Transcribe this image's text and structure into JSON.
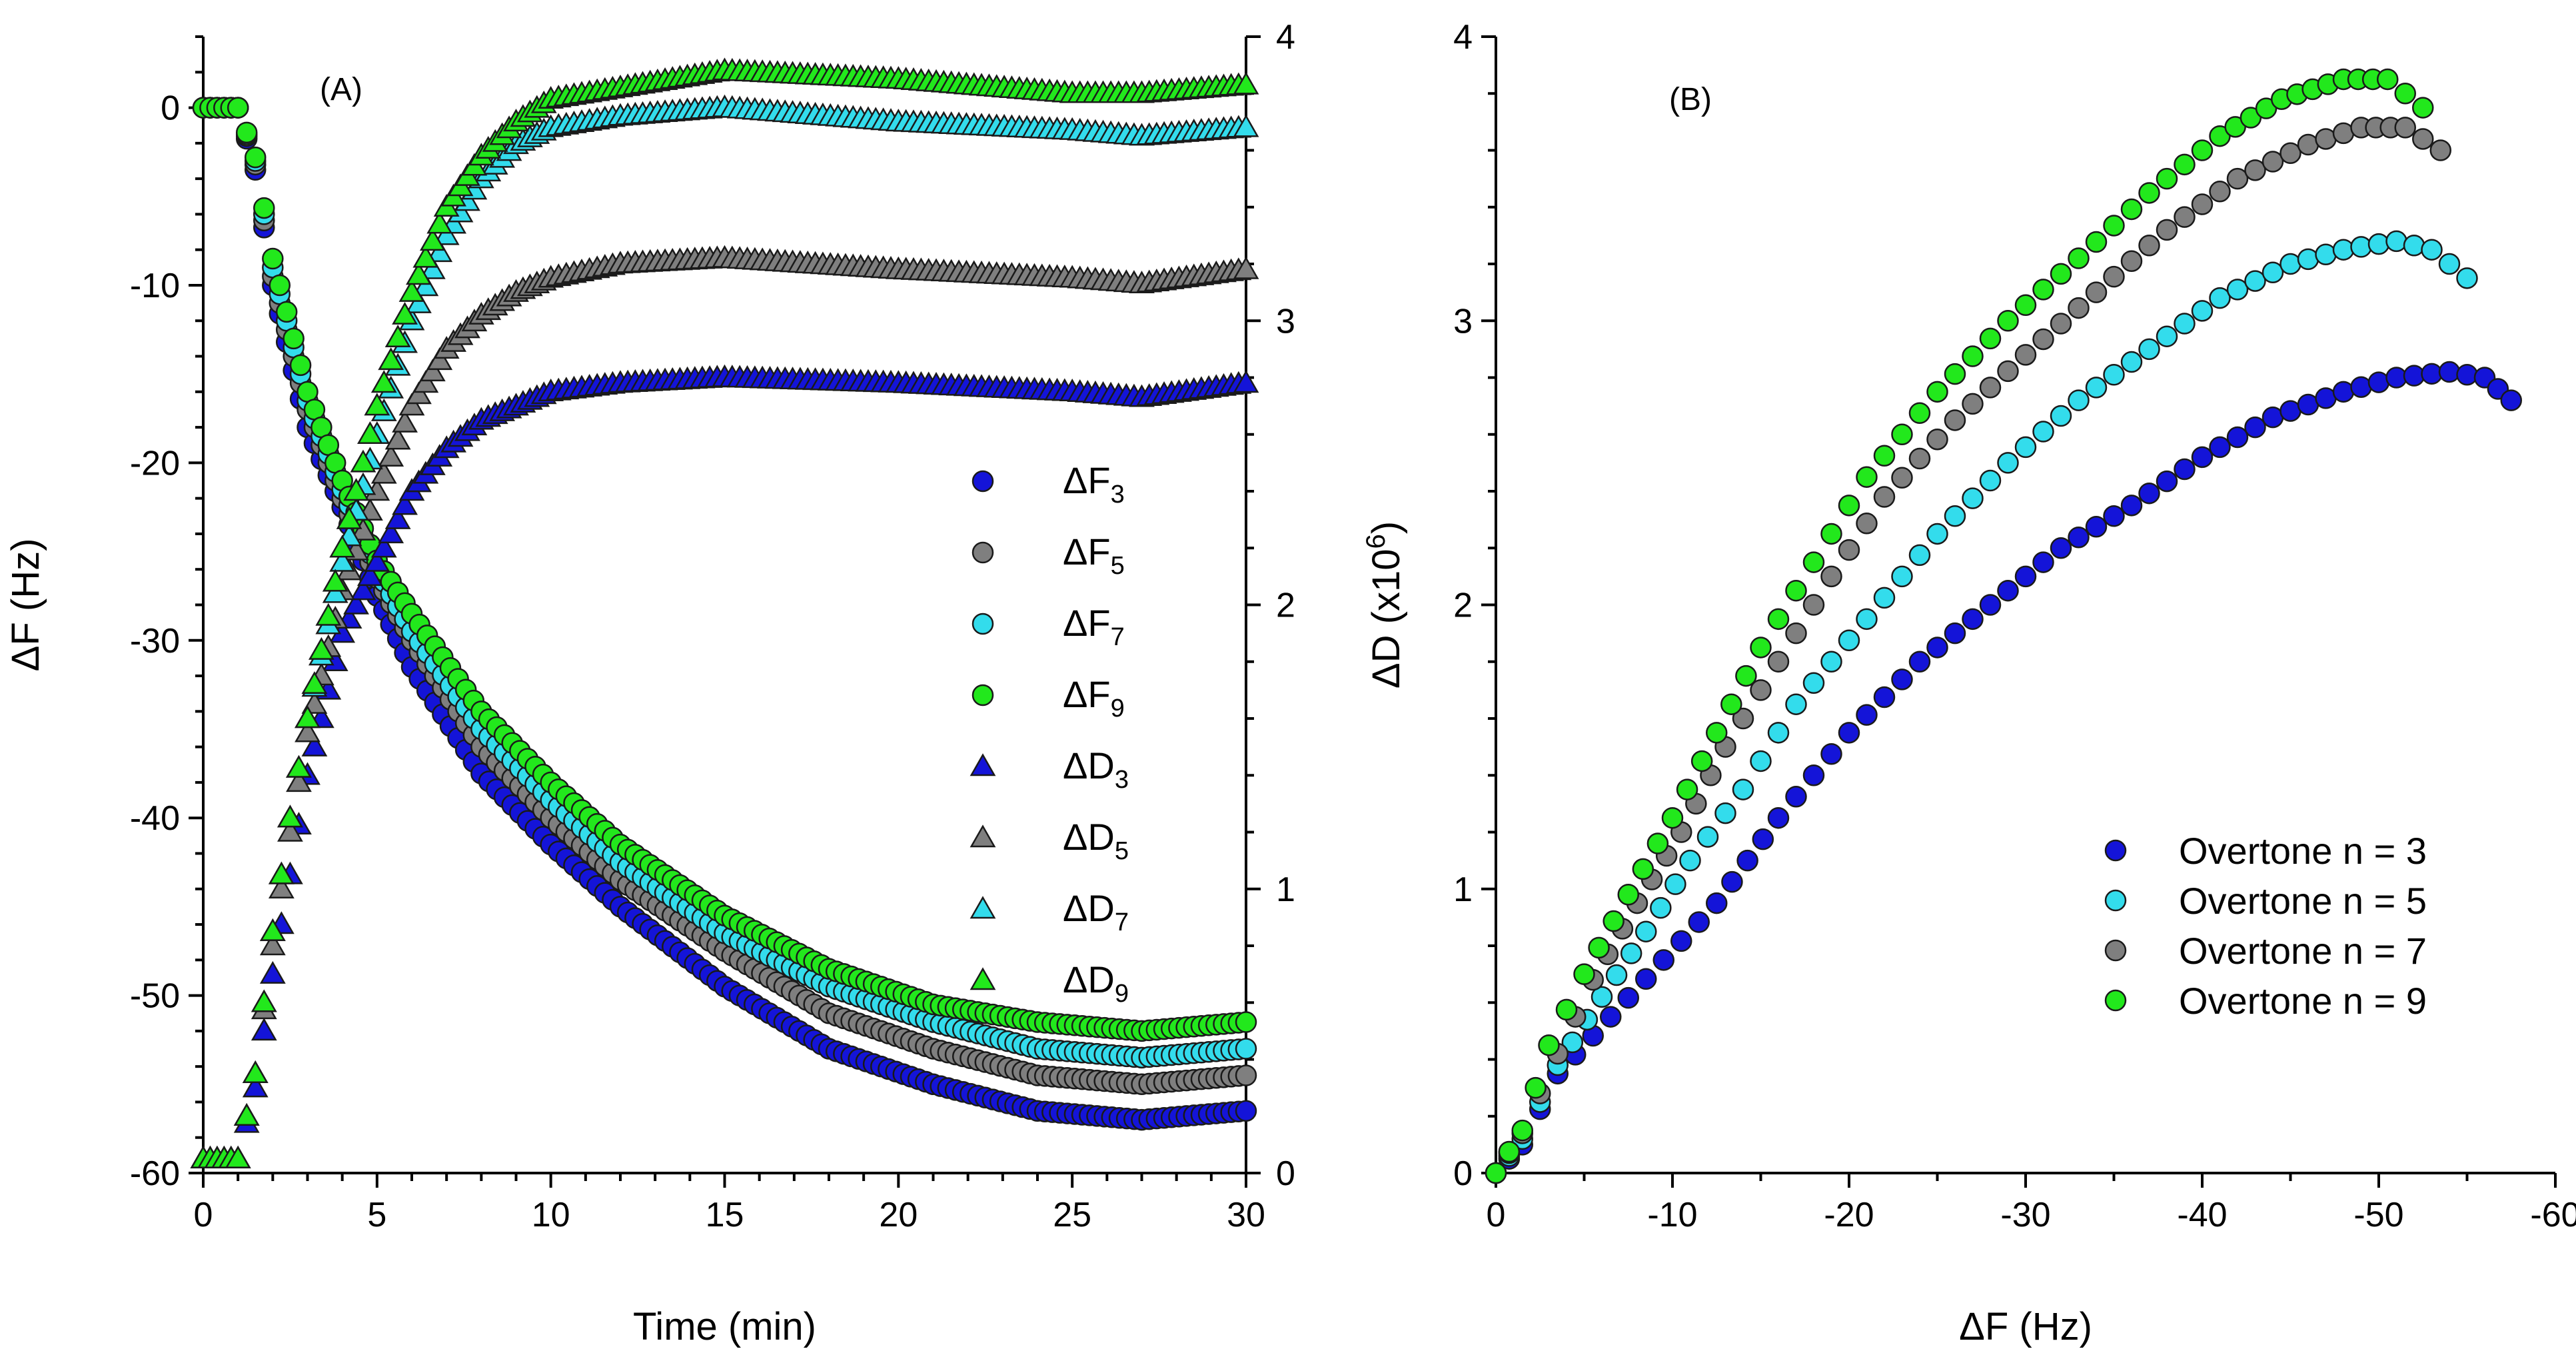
{
  "colors": {
    "n3": "#1414d8",
    "n5": "#7f7f7f",
    "n7": "#33dcec",
    "n9": "#22e81c",
    "axis": "#000000"
  },
  "chart_data": [
    {
      "type": "scatter",
      "panel_label": "(A)",
      "xlabel": "Time (min)",
      "ylabel": "ΔF (Hz)",
      "y2label": "",
      "xlim": [
        0,
        30
      ],
      "ylim": [
        -60,
        4
      ],
      "y2lim": [
        0,
        4
      ],
      "x_ticks": [
        "0",
        "5",
        "10",
        "15",
        "20",
        "25",
        "30"
      ],
      "y_ticks": [
        "0",
        "-10",
        "-20",
        "-30",
        "-40",
        "-50",
        "-60"
      ],
      "y2_ticks": [
        "0",
        "1",
        "2",
        "3",
        "4"
      ],
      "legend_position": "center-right",
      "series": [
        {
          "name": "ΔF3",
          "base": "ΔF",
          "sub": "3",
          "axis": "left",
          "marker": "circle",
          "color_key": "n3",
          "x": [
            0,
            1,
            1.5,
            2,
            3,
            4,
            5,
            6,
            8,
            10,
            12,
            15,
            18,
            21,
            24,
            27,
            30
          ],
          "y": [
            0,
            0,
            -3.5,
            -10,
            -18,
            -22.5,
            -27.5,
            -31.5,
            -37.5,
            -41.5,
            -45,
            -49.5,
            -53,
            -55,
            -56.5,
            -57,
            -56.5
          ]
        },
        {
          "name": "ΔF5",
          "base": "ΔF",
          "sub": "5",
          "axis": "left",
          "marker": "circle",
          "color_key": "n5",
          "x": [
            0,
            1,
            1.5,
            2,
            3,
            4,
            5,
            6,
            8,
            10,
            12,
            15,
            18,
            21,
            24,
            27,
            30
          ],
          "y": [
            0,
            0,
            -3.2,
            -9.5,
            -17,
            -22,
            -26.5,
            -30,
            -36,
            -40,
            -43.5,
            -47.5,
            -51,
            -53,
            -54.5,
            -55,
            -54.5
          ]
        },
        {
          "name": "ΔF7",
          "base": "ΔF",
          "sub": "7",
          "axis": "left",
          "marker": "circle",
          "color_key": "n7",
          "x": [
            0,
            1,
            1.5,
            2,
            3,
            4,
            5,
            6,
            8,
            10,
            12,
            15,
            18,
            21,
            24,
            27,
            30
          ],
          "y": [
            0,
            0,
            -3,
            -9,
            -16.5,
            -21.5,
            -26,
            -29.5,
            -35,
            -39,
            -42.5,
            -46.5,
            -49.5,
            -51.5,
            -53,
            -53.5,
            -53
          ]
        },
        {
          "name": "ΔF9",
          "base": "ΔF",
          "sub": "9",
          "axis": "left",
          "marker": "circle",
          "color_key": "n9",
          "x": [
            0,
            1,
            1.5,
            2,
            3,
            4,
            5,
            6,
            8,
            10,
            12,
            15,
            18,
            21,
            24,
            27,
            30
          ],
          "y": [
            0,
            0,
            -2.8,
            -8.5,
            -16,
            -21,
            -25.5,
            -28.5,
            -34,
            -38,
            -41.5,
            -45.5,
            -48.5,
            -50.5,
            -51.5,
            -52,
            -51.5
          ]
        },
        {
          "name": "ΔD3",
          "base": "ΔD",
          "sub": "3",
          "axis": "right",
          "marker": "triangle",
          "color_key": "n3",
          "x": [
            0,
            1,
            1.5,
            2,
            2.5,
            3,
            4,
            5,
            6,
            7,
            8,
            9,
            10,
            12,
            15,
            20,
            25,
            27,
            30
          ],
          "y": [
            0.05,
            0.05,
            0.3,
            0.7,
            1.05,
            1.4,
            1.9,
            2.15,
            2.4,
            2.55,
            2.65,
            2.7,
            2.75,
            2.78,
            2.8,
            2.78,
            2.75,
            2.73,
            2.78
          ]
        },
        {
          "name": "ΔD5",
          "base": "ΔD",
          "sub": "5",
          "axis": "right",
          "marker": "triangle",
          "color_key": "n5",
          "x": [
            0,
            1,
            1.5,
            2,
            2.5,
            3,
            4,
            5,
            6,
            7,
            8,
            9,
            10,
            12,
            15,
            20,
            25,
            27,
            30
          ],
          "y": [
            0.05,
            0.05,
            0.35,
            0.8,
            1.2,
            1.55,
            2.05,
            2.4,
            2.7,
            2.9,
            3.02,
            3.1,
            3.15,
            3.2,
            3.22,
            3.18,
            3.15,
            3.13,
            3.18
          ]
        },
        {
          "name": "ΔD7",
          "base": "ΔD",
          "sub": "7",
          "axis": "right",
          "marker": "triangle",
          "color_key": "n7",
          "x": [
            0,
            1,
            1.5,
            2,
            2.5,
            3,
            4,
            5,
            6,
            7,
            8,
            9,
            10,
            12,
            15,
            20,
            25,
            27,
            30
          ],
          "y": [
            0.05,
            0.05,
            0.35,
            0.85,
            1.25,
            1.6,
            2.15,
            2.6,
            3.0,
            3.3,
            3.5,
            3.62,
            3.68,
            3.72,
            3.75,
            3.7,
            3.67,
            3.65,
            3.68
          ]
        },
        {
          "name": "ΔD9",
          "base": "ΔD",
          "sub": "9",
          "axis": "right",
          "marker": "triangle",
          "color_key": "n9",
          "x": [
            0,
            1,
            1.5,
            2,
            2.5,
            3,
            4,
            5,
            6,
            7,
            8,
            9,
            10,
            12,
            15,
            20,
            25,
            27,
            30
          ],
          "y": [
            0.05,
            0.05,
            0.35,
            0.85,
            1.25,
            1.6,
            2.2,
            2.7,
            3.1,
            3.4,
            3.58,
            3.7,
            3.78,
            3.82,
            3.88,
            3.85,
            3.8,
            3.8,
            3.83
          ]
        }
      ]
    },
    {
      "type": "scatter",
      "panel_label": "(B)",
      "xlabel": "ΔF (Hz)",
      "ylabel": "ΔD (x10",
      "ylabel_sup": "6",
      "ylabel_tail": ")",
      "xlim": [
        0,
        -60
      ],
      "ylim": [
        0,
        4
      ],
      "x_ticks": [
        "0",
        "-10",
        "-20",
        "-30",
        "-40",
        "-50",
        "-60"
      ],
      "y_ticks": [
        "0",
        "1",
        "2",
        "3",
        "4"
      ],
      "legend_position": "bottom-right",
      "series": [
        {
          "name": "Overtone n = 3",
          "marker": "circle",
          "color_key": "n3",
          "x": [
            0,
            -1.5,
            -3.5,
            -6.5,
            -9.5,
            -12.5,
            -16,
            -20,
            -24,
            -28,
            -32,
            -36,
            -40,
            -44,
            -48,
            -51,
            -54,
            -56,
            -57.5
          ],
          "y": [
            0,
            0.1,
            0.35,
            0.55,
            0.75,
            0.95,
            1.25,
            1.55,
            1.8,
            2.0,
            2.2,
            2.35,
            2.52,
            2.66,
            2.75,
            2.8,
            2.82,
            2.8,
            2.72
          ]
        },
        {
          "name": "Overtone n = 5",
          "marker": "circle",
          "color_key": "n7",
          "x": [
            0,
            -1.5,
            -3.5,
            -6,
            -8.5,
            -11,
            -14,
            -17,
            -21,
            -25,
            -29,
            -33,
            -37,
            -41,
            -45,
            -48,
            -51,
            -53,
            -55
          ],
          "y": [
            0,
            0.12,
            0.38,
            0.62,
            0.85,
            1.1,
            1.35,
            1.65,
            1.95,
            2.25,
            2.5,
            2.72,
            2.9,
            3.08,
            3.2,
            3.25,
            3.28,
            3.25,
            3.15
          ]
        },
        {
          "name": "Overtone n = 7",
          "marker": "circle",
          "color_key": "n5",
          "x": [
            0,
            -1.5,
            -3.5,
            -5.5,
            -8,
            -10.5,
            -13,
            -16,
            -19,
            -22,
            -26,
            -30,
            -34,
            -38,
            -42,
            -46,
            -49,
            -51.5,
            -53.5
          ],
          "y": [
            0,
            0.14,
            0.42,
            0.68,
            0.95,
            1.2,
            1.5,
            1.8,
            2.1,
            2.38,
            2.65,
            2.88,
            3.1,
            3.32,
            3.5,
            3.62,
            3.68,
            3.68,
            3.6
          ]
        },
        {
          "name": "Overtone n = 9",
          "marker": "circle",
          "color_key": "n9",
          "x": [
            0,
            -1.5,
            -3,
            -5,
            -7.5,
            -10,
            -12.5,
            -15,
            -18,
            -21,
            -25,
            -29,
            -33,
            -37,
            -41,
            -44.5,
            -48,
            -50.5,
            -52.5
          ],
          "y": [
            0,
            0.15,
            0.45,
            0.7,
            0.98,
            1.25,
            1.55,
            1.85,
            2.15,
            2.45,
            2.75,
            3.0,
            3.22,
            3.45,
            3.65,
            3.78,
            3.85,
            3.85,
            3.75
          ]
        }
      ]
    }
  ]
}
